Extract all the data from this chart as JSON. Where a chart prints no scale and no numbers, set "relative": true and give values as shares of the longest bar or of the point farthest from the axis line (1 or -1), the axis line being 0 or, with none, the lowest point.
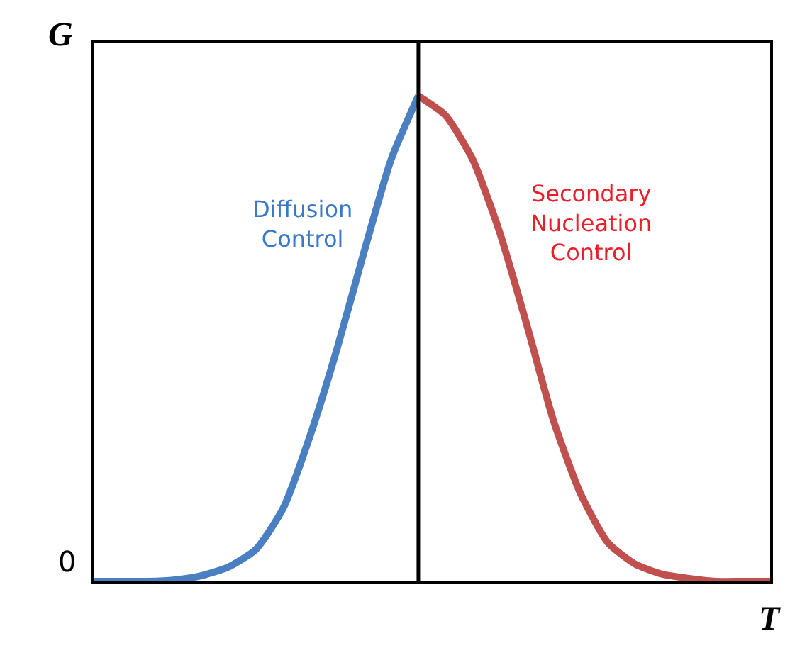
{
  "chart_data": {
    "type": "line",
    "relative": true,
    "xlabel": "T",
    "ylabel": "G",
    "categories": [
      null,
      null,
      null,
      null,
      null,
      null,
      null,
      null,
      null,
      null,
      null,
      null,
      null,
      null,
      null,
      null,
      null,
      null,
      null,
      null,
      null,
      null,
      null,
      null,
      null,
      null
    ],
    "series": [
      {
        "color": "#4a7fc1",
        "values": [
          0,
          0,
          0,
          0.003,
          0.012,
          0.03,
          0.066,
          0.15,
          0.3,
          0.48,
          0.68,
          0.87,
          1.0,
          null,
          null,
          null,
          null,
          null,
          null,
          null,
          null,
          null,
          null,
          null,
          null,
          null
        ]
      },
      {
        "color": "#c0504d",
        "values": [
          null,
          null,
          null,
          null,
          null,
          null,
          null,
          null,
          null,
          null,
          null,
          null,
          1.0,
          0.96,
          0.87,
          0.72,
          0.53,
          0.33,
          0.18,
          0.08,
          0.036,
          0.015,
          0.006,
          0,
          0,
          0
        ]
      }
    ],
    "annotations": [
      "Diffusion Control",
      "Secondary Nucleation Control",
      "0"
    ],
    "marker": "none",
    "line_style": "solid"
  }
}
